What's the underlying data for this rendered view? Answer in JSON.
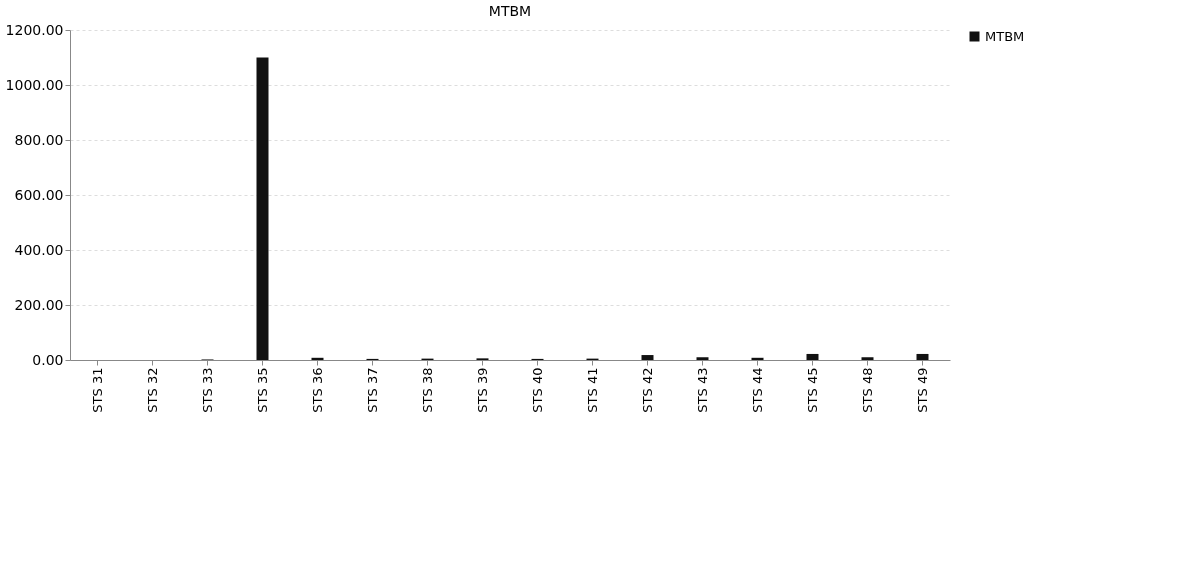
{
  "chart_data": {
    "type": "bar",
    "title": "MTBM",
    "categories": [
      "STS 31",
      "STS 32",
      "STS 33",
      "STS 35",
      "STS 36",
      "STS 37",
      "STS 38",
      "STS 39",
      "STS 40",
      "STS 41",
      "STS 42",
      "STS 43",
      "STS 44",
      "STS 45",
      "STS 48",
      "STS 49"
    ],
    "series": [
      {
        "name": "MTBM",
        "color": "#111111",
        "values": [
          0,
          0,
          2,
          1100,
          8,
          4,
          5,
          6,
          4,
          5,
          18,
          10,
          8,
          22,
          10,
          22
        ]
      }
    ],
    "ylim": [
      0,
      1200
    ],
    "yticks": [
      {
        "value": 0,
        "label": "0.00"
      },
      {
        "value": 200,
        "label": "200.00"
      },
      {
        "value": 400,
        "label": "400.00"
      },
      {
        "value": 600,
        "label": "600.00"
      },
      {
        "value": 800,
        "label": "800.00"
      },
      {
        "value": 1000,
        "label": "1000.00"
      },
      {
        "value": 1200,
        "label": "1200.00"
      }
    ],
    "grid": "y",
    "legend": "right"
  }
}
